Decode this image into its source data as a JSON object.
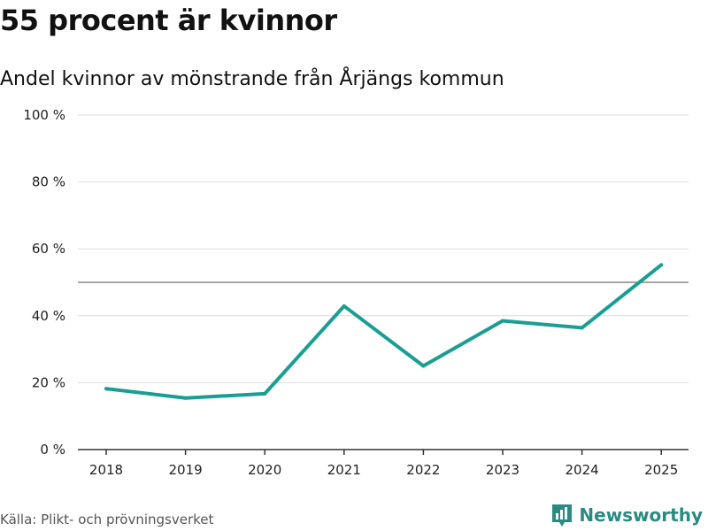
{
  "header": {
    "title": "55 procent är kvinnor",
    "subtitle": "Andel kvinnor av mönstrande från Årjängs kommun"
  },
  "footer": {
    "source": "Källa: Plikt- och prövningsverket",
    "brand": "Newsworthy",
    "brand_icon": "newsworthy-logo-icon"
  },
  "colors": {
    "line": "#1a9e94",
    "grid": "#dddddd",
    "reference": "#888888",
    "axis": "#333333",
    "brand": "#2a8a84"
  },
  "chart_data": {
    "type": "line",
    "title": "55 procent är kvinnor",
    "subtitle": "Andel kvinnor av mönstrande från Årjängs kommun",
    "xlabel": "",
    "ylabel": "",
    "categories": [
      "2018",
      "2019",
      "2020",
      "2021",
      "2022",
      "2023",
      "2024",
      "2025"
    ],
    "series": [
      {
        "name": "Andel kvinnor",
        "values": [
          18.2,
          15.4,
          16.7,
          42.9,
          25.0,
          38.5,
          36.4,
          55.2
        ]
      }
    ],
    "ylim": [
      0,
      100
    ],
    "yticks": [
      0,
      20,
      40,
      60,
      80,
      100
    ],
    "ytick_labels": [
      "0 %",
      "20 %",
      "40 %",
      "60 %",
      "80 %",
      "100 %"
    ],
    "reference_line": 50,
    "grid": true,
    "legend": "none"
  }
}
